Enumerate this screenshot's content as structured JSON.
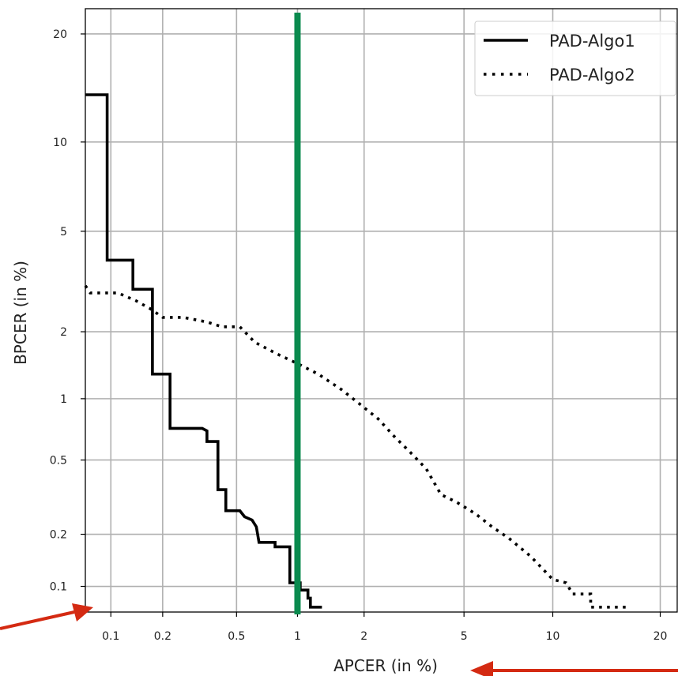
{
  "chart_data": {
    "type": "line",
    "xlabel": "APCER (in %)",
    "ylabel": "BPCER (in %)",
    "x_scale": "probit",
    "y_scale": "probit",
    "xlim": [
      0.07,
      22
    ],
    "ylim": [
      0.07,
      23
    ],
    "grid": true,
    "legend_position": "top-right",
    "x_ticks": [
      {
        "value": 0.1,
        "label": "0.1"
      },
      {
        "value": 0.2,
        "label": "0.2"
      },
      {
        "value": 0.5,
        "label": "0.5"
      },
      {
        "value": 1,
        "label": "1"
      },
      {
        "value": 2,
        "label": "2"
      },
      {
        "value": 5,
        "label": "5"
      },
      {
        "value": 10,
        "label": "10"
      },
      {
        "value": 20,
        "label": "20"
      }
    ],
    "y_ticks": [
      {
        "value": 0.1,
        "label": "0.1"
      },
      {
        "value": 0.2,
        "label": "0.2"
      },
      {
        "value": 0.5,
        "label": "0.5"
      },
      {
        "value": 1,
        "label": "1"
      },
      {
        "value": 2,
        "label": "2"
      },
      {
        "value": 5,
        "label": "5"
      },
      {
        "value": 10,
        "label": "10"
      },
      {
        "value": 20,
        "label": "20"
      }
    ],
    "series": [
      {
        "name": "PAD-Algo1",
        "color": "#000000",
        "style": "solid",
        "points": [
          [
            0.07,
            13.8
          ],
          [
            0.095,
            13.8
          ],
          [
            0.095,
            3.9
          ],
          [
            0.135,
            3.9
          ],
          [
            0.135,
            3.0
          ],
          [
            0.175,
            3.0
          ],
          [
            0.175,
            1.3
          ],
          [
            0.22,
            1.3
          ],
          [
            0.22,
            0.72
          ],
          [
            0.33,
            0.72
          ],
          [
            0.35,
            0.7
          ],
          [
            0.35,
            0.62
          ],
          [
            0.4,
            0.62
          ],
          [
            0.4,
            0.35
          ],
          [
            0.44,
            0.35
          ],
          [
            0.44,
            0.27
          ],
          [
            0.52,
            0.27
          ],
          [
            0.55,
            0.25
          ],
          [
            0.6,
            0.24
          ],
          [
            0.63,
            0.22
          ],
          [
            0.65,
            0.18
          ],
          [
            0.78,
            0.18
          ],
          [
            0.78,
            0.17
          ],
          [
            0.92,
            0.17
          ],
          [
            0.92,
            0.105
          ],
          [
            1.03,
            0.105
          ],
          [
            1.03,
            0.095
          ],
          [
            1.12,
            0.095
          ],
          [
            1.12,
            0.085
          ],
          [
            1.15,
            0.085
          ],
          [
            1.15,
            0.075
          ],
          [
            1.3,
            0.075
          ]
        ]
      },
      {
        "name": "PAD-Algo2",
        "color": "#000000",
        "style": "dotted",
        "points": [
          [
            0.07,
            3.1
          ],
          [
            0.075,
            2.9
          ],
          [
            0.11,
            2.9
          ],
          [
            0.14,
            2.7
          ],
          [
            0.17,
            2.5
          ],
          [
            0.2,
            2.3
          ],
          [
            0.26,
            2.3
          ],
          [
            0.35,
            2.2
          ],
          [
            0.42,
            2.1
          ],
          [
            0.52,
            2.1
          ],
          [
            0.62,
            1.8
          ],
          [
            0.8,
            1.6
          ],
          [
            1.0,
            1.45
          ],
          [
            1.25,
            1.3
          ],
          [
            1.6,
            1.1
          ],
          [
            1.9,
            0.95
          ],
          [
            2.3,
            0.8
          ],
          [
            2.7,
            0.65
          ],
          [
            3.1,
            0.55
          ],
          [
            3.6,
            0.45
          ],
          [
            4.1,
            0.33
          ],
          [
            4.7,
            0.3
          ],
          [
            5.5,
            0.26
          ],
          [
            6.3,
            0.22
          ],
          [
            7.2,
            0.19
          ],
          [
            8.5,
            0.15
          ],
          [
            10.0,
            0.11
          ],
          [
            11.0,
            0.105
          ],
          [
            11.5,
            0.09
          ],
          [
            13.0,
            0.09
          ],
          [
            13.0,
            0.075
          ],
          [
            16.5,
            0.075
          ]
        ]
      }
    ],
    "threshold_line": {
      "x": 1,
      "color": "#0a8a4e"
    },
    "annotations": [
      {
        "type": "arrow",
        "color": "#d42a12",
        "points_to": "x-axis lower-left corner"
      },
      {
        "type": "arrow",
        "color": "#d42a12",
        "points_to": "x-axis label"
      }
    ]
  }
}
